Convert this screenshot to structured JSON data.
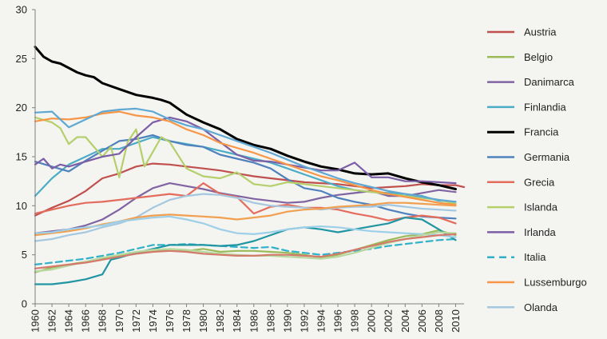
{
  "chart_data": {
    "type": "line",
    "title": "",
    "xlabel": "",
    "ylabel": "",
    "xlim": [
      1960,
      2011
    ],
    "ylim": [
      0,
      30
    ],
    "yticks": [
      0,
      5,
      10,
      15,
      20,
      25,
      30
    ],
    "xticks": [
      1960,
      1962,
      1964,
      1966,
      1968,
      1970,
      1972,
      1974,
      1976,
      1978,
      1980,
      1982,
      1984,
      1986,
      1988,
      1990,
      1992,
      1994,
      1996,
      1998,
      2000,
      2002,
      2004,
      2006,
      2008,
      2010
    ],
    "grid": false,
    "legend_position": "right",
    "series": [
      {
        "name": "Austria",
        "color": "#c0504d",
        "dashed": false,
        "x": [
          1960,
          1962,
          1964,
          1966,
          1968,
          1970,
          1972,
          1974,
          1976,
          1978,
          1980,
          1982,
          1984,
          1986,
          1988,
          1990,
          1992,
          1994,
          1996,
          1998,
          2000,
          2002,
          2004,
          2006,
          2008,
          2010,
          2011
        ],
        "y": [
          9.0,
          9.8,
          10.5,
          11.5,
          12.8,
          13.3,
          14.0,
          14.3,
          14.2,
          14.0,
          13.8,
          13.6,
          13.3,
          13.0,
          12.8,
          12.6,
          12.4,
          12.3,
          12.2,
          12.0,
          11.8,
          11.9,
          12.0,
          12.2,
          12.1,
          12.1,
          11.9
        ]
      },
      {
        "name": "Belgio",
        "color": "#9bbb59",
        "dashed": false,
        "x": [
          1960,
          1962,
          1964,
          1966,
          1968,
          1970,
          1972,
          1974,
          1976,
          1978,
          1980,
          1982,
          1984,
          1986,
          1988,
          1990,
          1992,
          1994,
          1996,
          1998,
          2000,
          2002,
          2004,
          2006,
          2008,
          2010
        ],
        "y": [
          3.2,
          3.7,
          4.0,
          4.3,
          4.6,
          4.9,
          5.2,
          5.5,
          5.4,
          5.4,
          5.6,
          5.3,
          5.4,
          5.4,
          5.3,
          5.2,
          5.0,
          4.7,
          5.0,
          5.5,
          6.0,
          6.5,
          6.9,
          7.1,
          7.5,
          7.0
        ]
      },
      {
        "name": "Danimarca",
        "color": "#8064a2",
        "dashed": false,
        "x": [
          1960,
          1962,
          1964,
          1966,
          1968,
          1970,
          1972,
          1974,
          1976,
          1978,
          1980,
          1982,
          1984,
          1986,
          1988,
          1990,
          1992,
          1994,
          1996,
          1998,
          2000,
          2002,
          2004,
          2006,
          2008,
          2010
        ],
        "y": [
          7.2,
          7.4,
          7.6,
          8.0,
          8.6,
          9.6,
          10.8,
          11.8,
          12.3,
          12.0,
          11.7,
          11.3,
          11.0,
          10.7,
          10.5,
          10.3,
          10.4,
          10.8,
          11.1,
          11.3,
          11.5,
          11.0,
          11.0,
          11.3,
          11.6,
          11.4
        ]
      },
      {
        "name": "Finlandia",
        "color": "#4bacc6",
        "dashed": false,
        "x": [
          1960,
          1962,
          1964,
          1966,
          1968,
          1970,
          1972,
          1974,
          1976,
          1978,
          1980,
          1982,
          1984,
          1986,
          1988,
          1990,
          1992,
          1994,
          1996,
          1998,
          2000,
          2002,
          2004,
          2006,
          2008,
          2010
        ],
        "y": [
          11.0,
          12.8,
          14.2,
          15.0,
          15.8,
          15.8,
          16.4,
          17.0,
          16.6,
          16.3,
          16.0,
          15.6,
          15.2,
          14.8,
          14.4,
          13.8,
          13.2,
          12.6,
          12.0,
          11.6,
          11.4,
          11.3,
          11.2,
          11.0,
          10.5,
          10.4
        ]
      },
      {
        "name": "Francia",
        "color": "#000000",
        "dashed": false,
        "x": [
          1960,
          1961,
          1962,
          1963,
          1965,
          1966,
          1967,
          1968,
          1970,
          1972,
          1974,
          1975,
          1976,
          1978,
          1980,
          1982,
          1984,
          1986,
          1988,
          1990,
          1992,
          1994,
          1996,
          1998,
          2000,
          2002,
          2004,
          2006,
          2008,
          2010
        ],
        "y": [
          26.2,
          25.2,
          24.7,
          24.5,
          23.6,
          23.3,
          23.1,
          22.5,
          21.9,
          21.3,
          21.0,
          20.8,
          20.5,
          19.3,
          18.5,
          17.8,
          16.8,
          16.2,
          15.8,
          15.1,
          14.5,
          14.0,
          13.7,
          13.3,
          13.2,
          13.3,
          12.8,
          12.4,
          12.1,
          11.7
        ]
      },
      {
        "name": "Germania",
        "color": "#4f81bd",
        "dashed": false,
        "x": [
          1960,
          1962,
          1964,
          1966,
          1968,
          1970,
          1972,
          1974,
          1976,
          1978,
          1980,
          1982,
          1984,
          1986,
          1988,
          1990,
          1992,
          1994,
          1996,
          1998,
          2000,
          2002,
          2004,
          2006,
          2008,
          2010
        ],
        "y": [
          14.5,
          14.0,
          13.5,
          14.6,
          15.6,
          16.6,
          16.8,
          17.2,
          16.6,
          16.2,
          16.0,
          15.2,
          14.8,
          14.4,
          13.8,
          12.7,
          11.8,
          11.5,
          10.8,
          10.4,
          10.1,
          9.6,
          9.2,
          8.9,
          8.8,
          8.7
        ]
      },
      {
        "name": "Grecia",
        "color": "#e46c5c",
        "dashed": false,
        "x": [
          1960,
          1962,
          1964,
          1966,
          1968,
          1970,
          1972,
          1974,
          1976,
          1978,
          1980,
          1982,
          1984,
          1986,
          1988,
          1990,
          1992,
          1994,
          1996,
          1998,
          2000,
          2002,
          2004,
          2006,
          2008,
          2010
        ],
        "y": [
          9.2,
          9.6,
          10.0,
          10.3,
          10.4,
          10.6,
          10.8,
          11.0,
          11.2,
          11.0,
          12.3,
          11.2,
          10.9,
          9.2,
          9.9,
          10.1,
          9.8,
          9.8,
          9.6,
          9.2,
          8.9,
          8.5,
          8.8,
          9.0,
          8.8,
          8.2
        ]
      },
      {
        "name": "Islanda",
        "color": "#b5cf6b",
        "dashed": false,
        "x": [
          1960,
          1962,
          1963,
          1964,
          1965,
          1966,
          1968,
          1969,
          1970,
          1971,
          1972,
          1973,
          1974,
          1975,
          1976,
          1978,
          1980,
          1982,
          1984,
          1986,
          1988,
          1990,
          1992,
          1994,
          1996,
          1998,
          2000,
          2002,
          2004,
          2006,
          2008,
          2010
        ],
        "y": [
          19.0,
          18.5,
          17.9,
          16.3,
          17.0,
          17.0,
          15.0,
          16.0,
          12.9,
          16.5,
          17.8,
          14.0,
          15.5,
          17.0,
          16.5,
          13.8,
          13.0,
          12.8,
          13.4,
          12.2,
          12.0,
          12.4,
          12.2,
          12.0,
          11.8,
          11.6,
          11.4,
          11.2,
          11.0,
          10.8,
          10.6,
          10.2
        ]
      },
      {
        "name": "Irlanda",
        "color": "#7b5ea6",
        "dashed": false,
        "x": [
          1960,
          1961,
          1962,
          1963,
          1964,
          1966,
          1968,
          1970,
          1972,
          1974,
          1976,
          1978,
          1980,
          1982,
          1984,
          1986,
          1988,
          1990,
          1992,
          1994,
          1996,
          1998,
          2000,
          2002,
          2004,
          2006,
          2008,
          2010
        ],
        "y": [
          14.2,
          14.8,
          13.8,
          14.2,
          14.0,
          14.5,
          15.0,
          15.3,
          17.0,
          18.5,
          19.0,
          18.6,
          17.8,
          16.5,
          15.2,
          14.6,
          14.5,
          14.2,
          13.9,
          13.6,
          13.6,
          14.4,
          12.9,
          12.9,
          12.5,
          12.5,
          12.4,
          12.3
        ]
      },
      {
        "name": "Italia",
        "color": "#31b1c9",
        "dashed": true,
        "x": [
          1960,
          1962,
          1964,
          1966,
          1968,
          1970,
          1972,
          1974,
          1976,
          1978,
          1980,
          1982,
          1984,
          1986,
          1988,
          1990,
          1992,
          1994,
          1996,
          1998,
          2000,
          2002,
          2004,
          2006,
          2008,
          2010
        ],
        "y": [
          4.0,
          4.2,
          4.4,
          4.6,
          4.9,
          5.2,
          5.6,
          6.0,
          6.0,
          6.1,
          6.0,
          5.9,
          5.8,
          5.7,
          5.8,
          5.4,
          5.2,
          5.0,
          5.2,
          5.4,
          5.6,
          5.9,
          6.1,
          6.3,
          6.5,
          6.6
        ]
      },
      {
        "name": "Lussemburgo",
        "color": "#f79646",
        "dashed": false,
        "x": [
          1960,
          1962,
          1964,
          1966,
          1968,
          1970,
          1972,
          1974,
          1976,
          1978,
          1980,
          1982,
          1984,
          1986,
          1988,
          1990,
          1992,
          1994,
          1996,
          1998,
          2000,
          2002,
          2004,
          2006,
          2008,
          2010
        ],
        "y": [
          18.6,
          18.9,
          18.8,
          19.0,
          19.4,
          19.6,
          19.2,
          19.0,
          18.6,
          17.8,
          17.2,
          16.4,
          15.9,
          15.4,
          14.8,
          14.2,
          13.6,
          13.0,
          12.6,
          12.1,
          11.6,
          11.2,
          10.9,
          10.6,
          10.3,
          10.1
        ]
      },
      {
        "name": "Olanda",
        "color": "#a5c8e1",
        "dashed": false,
        "x": [
          1960,
          1962,
          1964,
          1966,
          1968,
          1970,
          1972,
          1974,
          1976,
          1978,
          1980,
          1982,
          1984,
          1986,
          1988,
          1990,
          1992,
          1994,
          1996,
          1998,
          2000,
          2002,
          2004,
          2006,
          2008,
          2010
        ],
        "y": [
          6.4,
          6.6,
          7.0,
          7.3,
          7.8,
          8.2,
          8.8,
          9.8,
          10.6,
          11.0,
          11.2,
          11.1,
          10.8,
          10.3,
          10.0,
          9.9,
          9.8,
          9.6,
          9.8,
          9.9,
          9.9,
          10.1,
          9.9,
          9.7,
          9.6,
          9.5
        ]
      },
      {
        "name": "",
        "color": "#2196a3",
        "dashed": false,
        "x": [
          1960,
          1962,
          1964,
          1966,
          1968,
          1969,
          1970,
          1972,
          1974,
          1976,
          1978,
          1980,
          1982,
          1984,
          1986,
          1988,
          1990,
          1992,
          1994,
          1996,
          1998,
          2000,
          2002,
          2004,
          2006,
          2008,
          2010
        ],
        "y": [
          2.0,
          2.0,
          2.2,
          2.5,
          3.0,
          4.5,
          4.7,
          5.2,
          5.6,
          6.0,
          6.0,
          6.0,
          5.9,
          6.0,
          6.4,
          7.0,
          7.6,
          7.8,
          7.6,
          7.3,
          7.6,
          7.9,
          8.2,
          8.8,
          8.6,
          7.6,
          6.5
        ]
      },
      {
        "name": "",
        "color": "#f0a050",
        "dashed": false,
        "x": [
          1960,
          1962,
          1964,
          1966,
          1968,
          1970,
          1972,
          1974,
          1976,
          1978,
          1980,
          1982,
          1984,
          1986,
          1988,
          1990,
          1992,
          1994,
          1996,
          1998,
          2000,
          2002,
          2004,
          2006,
          2008,
          2010
        ],
        "y": [
          7.0,
          7.2,
          7.4,
          7.7,
          8.1,
          8.4,
          8.8,
          9.0,
          9.1,
          9.0,
          8.9,
          8.8,
          8.6,
          8.8,
          9.0,
          9.4,
          9.6,
          9.7,
          9.9,
          10.0,
          10.1,
          10.3,
          10.3,
          10.2,
          10.1,
          10.0
        ]
      },
      {
        "name": "",
        "color": "#9dd0e8",
        "dashed": false,
        "x": [
          1960,
          1962,
          1964,
          1966,
          1968,
          1970,
          1972,
          1974,
          1976,
          1978,
          1980,
          1982,
          1984,
          1986,
          1988,
          1990,
          1992,
          1994,
          1996,
          1998,
          2000,
          2002,
          2004,
          2006,
          2008,
          2010
        ],
        "y": [
          7.2,
          7.3,
          7.6,
          7.8,
          8.0,
          8.4,
          8.6,
          8.8,
          8.9,
          8.6,
          8.2,
          7.6,
          7.2,
          7.1,
          7.3,
          7.6,
          7.8,
          7.9,
          7.8,
          7.6,
          7.4,
          7.3,
          7.2,
          7.1,
          7.0,
          6.8
        ]
      },
      {
        "name": "",
        "color": "#5fa8d3",
        "dashed": false,
        "x": [
          1960,
          1962,
          1964,
          1966,
          1968,
          1970,
          1972,
          1974,
          1976,
          1978,
          1980,
          1982,
          1984,
          1986,
          1988,
          1990,
          1992,
          1994,
          1996,
          1998,
          2000,
          2002,
          2004,
          2006,
          2008,
          2010
        ],
        "y": [
          19.5,
          19.6,
          18.0,
          18.8,
          19.6,
          19.8,
          19.9,
          19.6,
          18.8,
          18.2,
          17.8,
          17.2,
          16.6,
          16.0,
          15.4,
          14.7,
          14.0,
          13.4,
          12.8,
          12.3,
          11.9,
          11.5,
          11.2,
          10.9,
          10.6,
          10.4
        ]
      },
      {
        "name": "",
        "color": "#b7d9a0",
        "dashed": false,
        "x": [
          1960,
          1962,
          1964,
          1966,
          1968,
          1970,
          1972,
          1974,
          1976,
          1978,
          1980,
          1982,
          1984,
          1986,
          1988,
          1990,
          1992,
          1994,
          1996,
          1998,
          2000,
          2002,
          2004,
          2006,
          2008,
          2010
        ],
        "y": [
          3.3,
          3.5,
          3.9,
          4.3,
          4.7,
          5.0,
          5.3,
          5.5,
          5.6,
          5.5,
          5.3,
          5.1,
          5.0,
          4.9,
          4.9,
          4.8,
          4.7,
          4.6,
          4.8,
          5.2,
          5.7,
          6.2,
          6.6,
          7.0,
          7.3,
          7.2
        ]
      },
      {
        "name": "",
        "color": "#d47a6a",
        "dashed": false,
        "x": [
          1960,
          1962,
          1964,
          1966,
          1968,
          1970,
          1972,
          1974,
          1976,
          1978,
          1980,
          1982,
          1984,
          1986,
          1988,
          1990,
          1992,
          1994,
          1996,
          1998,
          2000,
          2002,
          2004,
          2006,
          2008,
          2010
        ],
        "y": [
          3.6,
          3.8,
          4.0,
          4.2,
          4.5,
          4.8,
          5.1,
          5.3,
          5.4,
          5.3,
          5.1,
          5.0,
          4.9,
          4.9,
          5.0,
          5.0,
          4.9,
          4.8,
          5.1,
          5.5,
          5.9,
          6.3,
          6.6,
          6.8,
          7.0,
          7.1
        ]
      }
    ]
  }
}
